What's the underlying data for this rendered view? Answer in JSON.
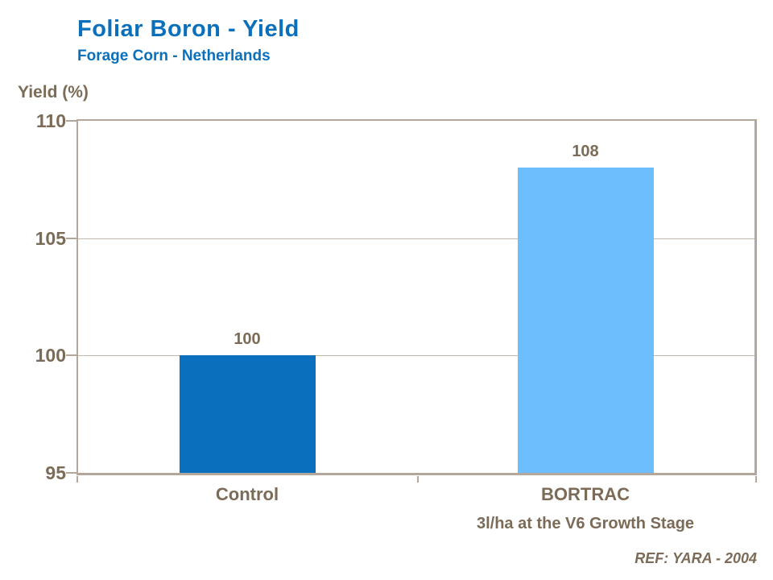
{
  "header": {
    "title": "Foliar Boron - Yield",
    "subtitle": "Forage Corn - Netherlands"
  },
  "chart_data": {
    "type": "bar",
    "title": "Foliar Boron - Yield",
    "subtitle": "Forage Corn - Netherlands",
    "ylabel": "Yield (%)",
    "ylim": [
      95,
      110
    ],
    "yticks": [
      110,
      105,
      100,
      95
    ],
    "grid": "horizontal gridlines at y ticks, plot fully framed",
    "legend": false,
    "categories": [
      "Control",
      "BORTRAC"
    ],
    "category_sublabels": [
      "",
      "3l/ha at the V6 Growth Stage"
    ],
    "values": [
      100,
      108
    ],
    "data_labels": [
      "100",
      "108"
    ],
    "bar_colors": [
      "#0a70be",
      "#6cbffc"
    ]
  },
  "footer": {
    "reference": "REF: YARA - 2004"
  },
  "colors": {
    "heading_blue": "#0b70bb",
    "text_brown": "#7b6b57",
    "axis_line": "#b2a79a",
    "gridline": "#c2b8ac",
    "bar_control": "#0a70be",
    "bar_bortrac": "#6cbffc"
  }
}
